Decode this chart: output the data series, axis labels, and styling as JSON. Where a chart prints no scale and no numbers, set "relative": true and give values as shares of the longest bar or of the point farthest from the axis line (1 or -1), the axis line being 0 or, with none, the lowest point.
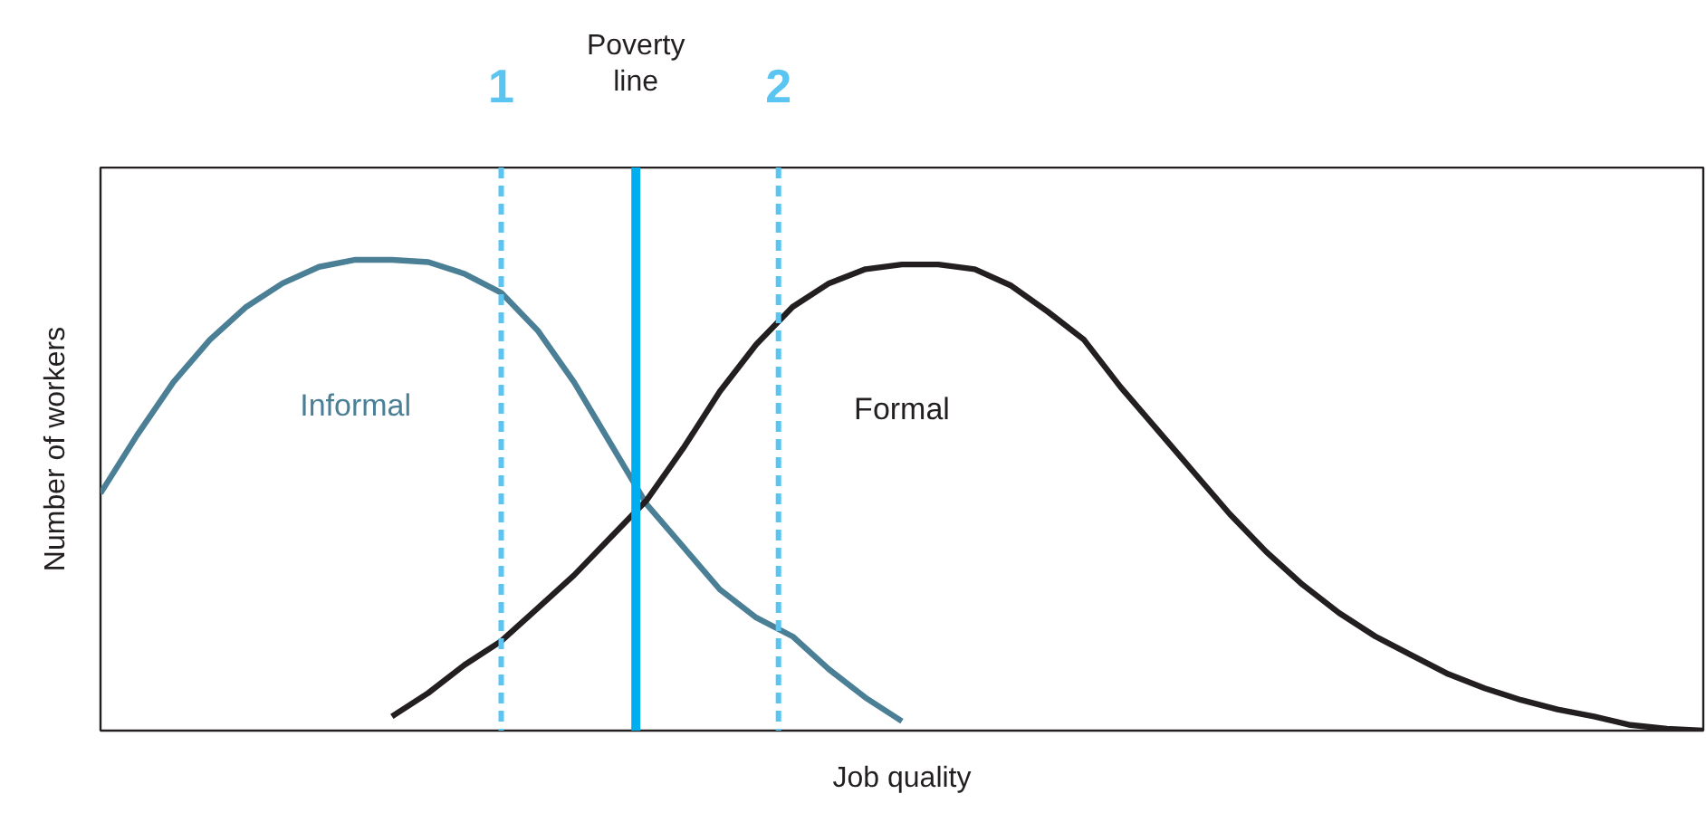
{
  "chart_data": {
    "type": "line",
    "relative": true,
    "xlabel": "Job quality",
    "ylabel": "Number of workers",
    "line_style": "solid",
    "categories": [
      null,
      null,
      null,
      null,
      null,
      null,
      null,
      null,
      null,
      null,
      null,
      null,
      null,
      null,
      null,
      null,
      null,
      null,
      null,
      null,
      null,
      null,
      null,
      null,
      null,
      null,
      null,
      null,
      null,
      null,
      null,
      null,
      null,
      null,
      null,
      null,
      null,
      null,
      null,
      null,
      null,
      null,
      null,
      null,
      null
    ],
    "series": [
      {
        "name": "Informal",
        "color": "#4a7f96",
        "values": [
          0.504,
          0.627,
          0.74,
          0.83,
          0.9,
          0.95,
          0.985,
          1.0,
          1.0,
          0.995,
          0.97,
          0.93,
          0.85,
          0.74,
          0.61,
          0.48,
          0.39,
          0.3,
          0.24,
          0.2,
          0.13,
          0.07,
          0.02,
          null,
          null,
          null,
          null,
          null,
          null,
          null,
          null,
          null,
          null,
          null,
          null,
          null,
          null,
          null,
          null,
          null,
          null,
          null,
          null,
          null,
          null
        ]
      },
      {
        "name": "Formal",
        "color": "#231f20",
        "values": [
          null,
          null,
          null,
          null,
          null,
          null,
          null,
          null,
          0.03,
          0.08,
          0.14,
          0.19,
          0.26,
          0.33,
          0.41,
          0.49,
          0.6,
          0.72,
          0.82,
          0.9,
          0.95,
          0.98,
          0.99,
          0.99,
          0.98,
          0.945,
          0.89,
          0.83,
          0.73,
          0.64,
          0.55,
          0.46,
          0.38,
          0.31,
          0.25,
          0.2,
          0.16,
          0.12,
          0.09,
          0.065,
          0.045,
          0.03,
          0.012,
          0.004,
          0
        ]
      }
    ],
    "annotations": [
      "1",
      "Poverty line",
      "2"
    ]
  }
}
